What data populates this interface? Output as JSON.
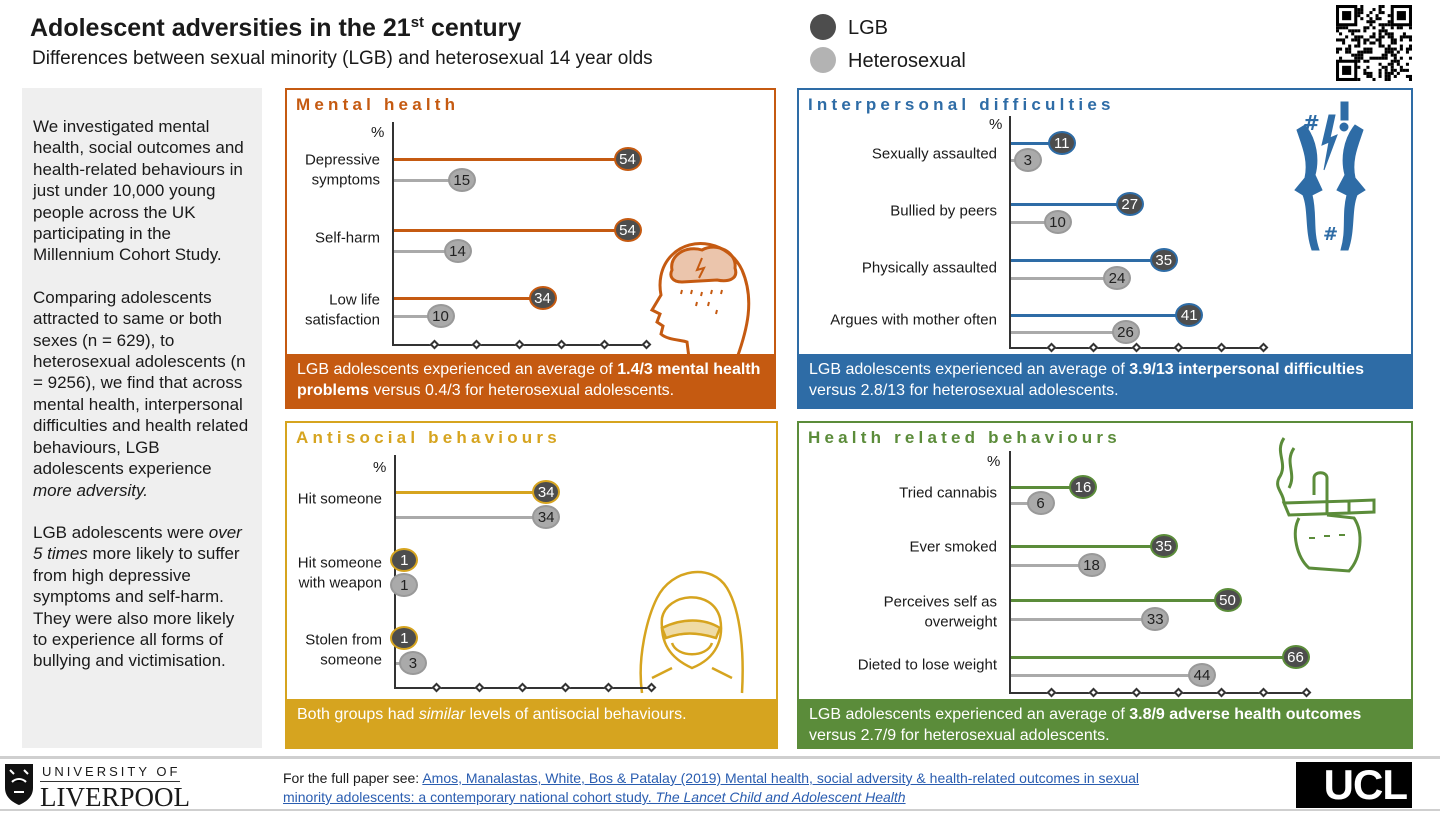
{
  "header": {
    "title": "Adolescent adversities in the 21",
    "title_sup": "st",
    "title_end": " century",
    "subtitle": "Differences between sexual minority (LGB) and heterosexual 14 year olds"
  },
  "legend": {
    "lgb": "LGB",
    "het": "Heterosexual",
    "lgb_color": "#4d4d4d",
    "het_color": "#aaaaaa"
  },
  "intro": {
    "p1": "We investigated mental health, social outcomes and health-related behaviours in just under 10,000 young people across the UK participating in the Millennium Cohort Study.",
    "p2": "Comparing adolescents attracted to same or both sexes (n = 629), to heterosexual adolescents (n = 9256), we find that across mental health, interpersonal difficulties and health related behaviours, LGB adolescents experience ",
    "p2_em": "more adversity.",
    "p3a": "LGB adolescents were ",
    "p3_em": "over 5 times",
    "p3b": " more likely to suffer from high depressive symptoms and self-harm. They were also more likely to experience all forms of bullying and victimisation."
  },
  "chart_data": [
    {
      "type": "bar",
      "orientation": "horizontal",
      "title": "Mental health",
      "ylabel": "%",
      "color": "#c55a11",
      "xlim": [
        0,
        60
      ],
      "categories": [
        "Depressive symptoms",
        "Self-harm",
        "Low life satisfaction"
      ],
      "series": [
        {
          "name": "LGB",
          "values": [
            54,
            54,
            34
          ]
        },
        {
          "name": "Heterosexual",
          "values": [
            15,
            14,
            10
          ]
        }
      ],
      "footer": {
        "a": "LGB adolescents experienced an average of ",
        "b": "1.4/3 mental health problems",
        "c": " versus 0.4/3 for heterosexual adolescents."
      }
    },
    {
      "type": "bar",
      "orientation": "horizontal",
      "title": "Interpersonal difficulties",
      "ylabel": "%",
      "color": "#2e6ca6",
      "xlim": [
        0,
        60
      ],
      "categories": [
        "Sexually assaulted",
        "Bullied by peers",
        "Physically assaulted",
        "Argues with mother often"
      ],
      "series": [
        {
          "name": "LGB",
          "values": [
            11,
            27,
            35,
            41
          ]
        },
        {
          "name": "Heterosexual",
          "values": [
            3,
            10,
            24,
            26
          ]
        }
      ],
      "footer": {
        "a": "LGB adolescents experienced an average of ",
        "b": "3.9/13 interpersonal difficulties",
        "c": " versus 2.8/13 for heterosexual adolescents."
      }
    },
    {
      "type": "bar",
      "orientation": "horizontal",
      "title": "Antisocial behaviours",
      "ylabel": "%",
      "color": "#d6a41f",
      "xlim": [
        0,
        60
      ],
      "categories": [
        "Hit someone",
        "Hit someone with weapon",
        "Stolen from someone"
      ],
      "series": [
        {
          "name": "LGB",
          "values": [
            34,
            1,
            1
          ]
        },
        {
          "name": "Heterosexual",
          "values": [
            34,
            1,
            3
          ]
        }
      ],
      "footer": {
        "a": "Both groups had ",
        "b_em": "similar",
        "c": " levels of antisocial behaviours."
      }
    },
    {
      "type": "bar",
      "orientation": "horizontal",
      "title": "Health related behaviours",
      "ylabel": "%",
      "color": "#5b8c3a",
      "xlim": [
        0,
        70
      ],
      "categories": [
        "Tried cannabis",
        "Ever smoked",
        "Perceives self as overweight",
        "Dieted to lose weight"
      ],
      "series": [
        {
          "name": "LGB",
          "values": [
            16,
            35,
            50,
            66
          ]
        },
        {
          "name": "Heterosexual",
          "values": [
            6,
            18,
            33,
            44
          ]
        }
      ],
      "footer": {
        "a": "LGB adolescents experienced an average of ",
        "b": "3.8/9 adverse health outcomes",
        "c": " versus 2.7/9 for heterosexual adolescents."
      }
    }
  ],
  "footer": {
    "univ_top": "UNIVERSITY OF",
    "univ_name": "LIVERPOOL",
    "ref_prefix": "For the full paper see: ",
    "ref_link": "Amos, Manalastas, White, Bos & Patalay (2019) Mental health, social adversity & health-related outcomes in sexual minority adolescents: a contemporary national cohort study. ",
    "ref_journal": "The Lancet Child and Adolescent Health",
    "ucl": "UCL"
  }
}
